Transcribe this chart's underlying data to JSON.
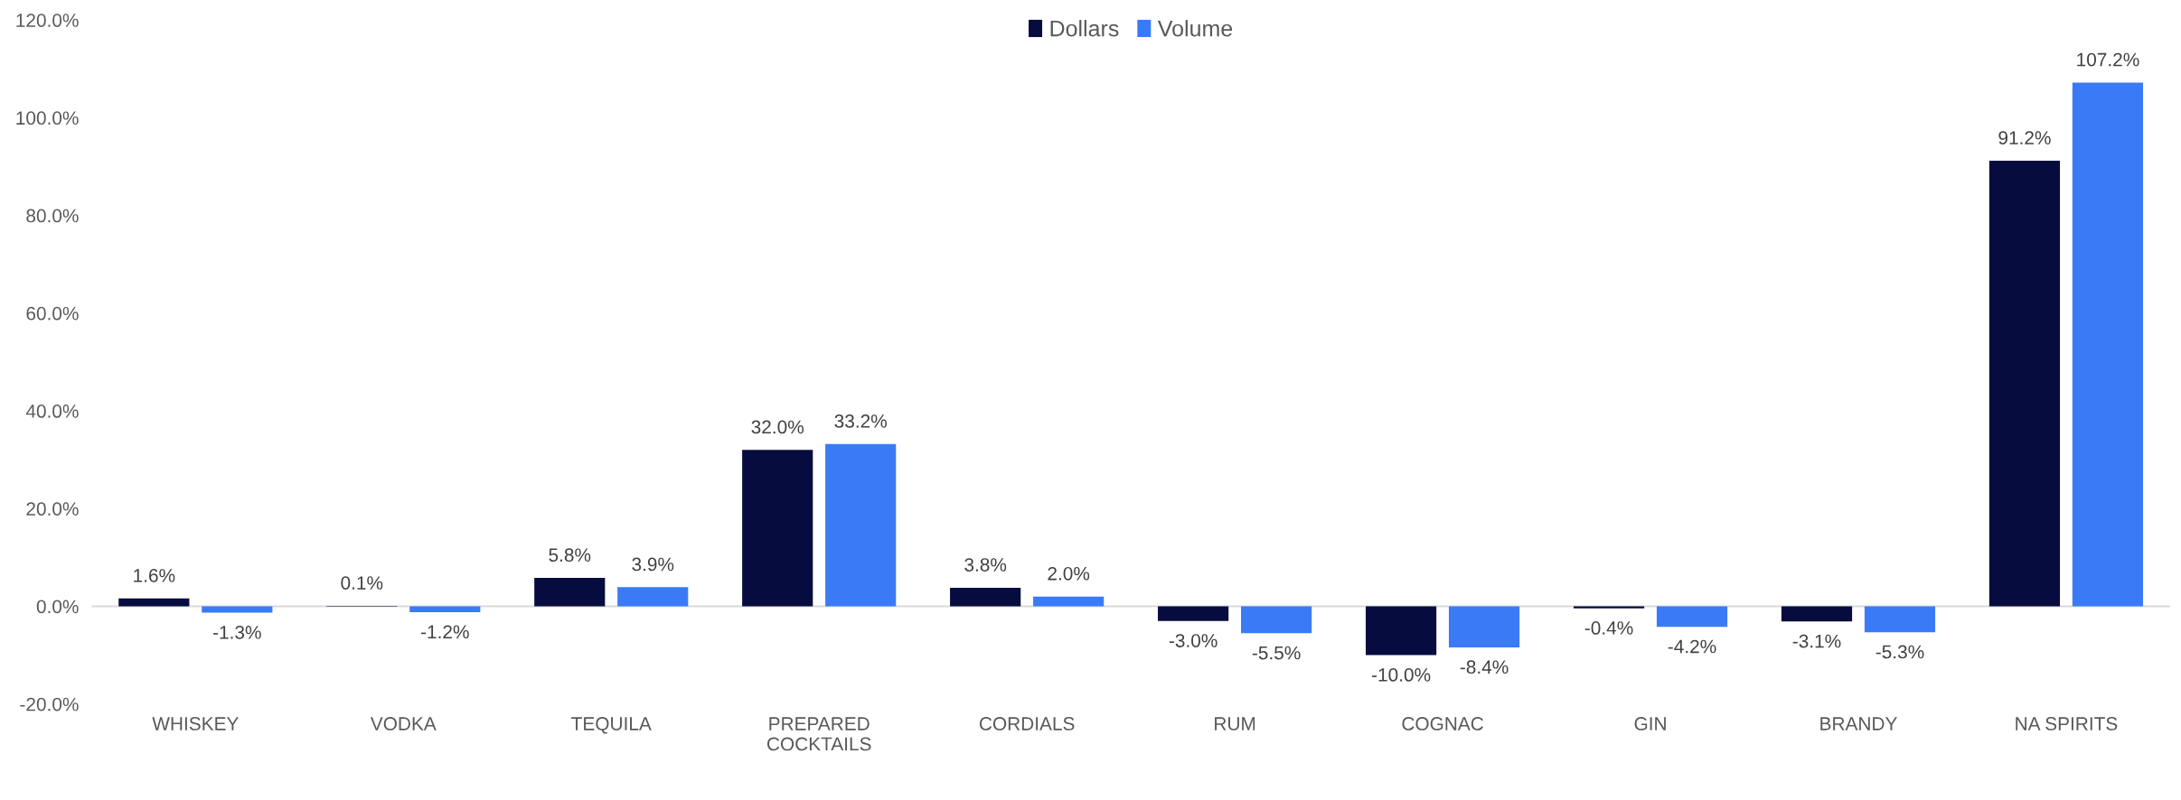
{
  "chart_data": {
    "type": "bar",
    "categories": [
      "WHISKEY",
      "VODKA",
      "TEQUILA",
      "PREPARED\nCOCKTAILS",
      "CORDIALS",
      "RUM",
      "COGNAC",
      "GIN",
      "BRANDY",
      "NA SPIRITS"
    ],
    "series": [
      {
        "name": "Dollars",
        "color": "#070c3f",
        "values": [
          1.6,
          0.1,
          5.8,
          32.0,
          3.8,
          -3.0,
          -10.0,
          -0.4,
          -3.1,
          91.2
        ],
        "value_labels": [
          "1.6%",
          "0.1%",
          "5.8%",
          "32.0%",
          "3.8%",
          "-3.0%",
          "-10.0%",
          "-0.4%",
          "-3.1%",
          "91.2%"
        ]
      },
      {
        "name": "Volume",
        "color": "#3a7bf5",
        "values": [
          -1.3,
          -1.2,
          3.9,
          33.2,
          2.0,
          -5.5,
          -8.4,
          -4.2,
          -5.3,
          107.2
        ],
        "value_labels": [
          "-1.3%",
          "-1.2%",
          "3.9%",
          "33.2%",
          "2.0%",
          "-5.5%",
          "-8.4%",
          "-4.2%",
          "-5.3%",
          "107.2%"
        ]
      }
    ],
    "ylim": [
      -20,
      120
    ],
    "yticks": [
      {
        "value": -20,
        "label": "-20.0%"
      },
      {
        "value": 0,
        "label": "0.0%"
      },
      {
        "value": 20,
        "label": "20.0%"
      },
      {
        "value": 40,
        "label": "40.0%"
      },
      {
        "value": 60,
        "label": "60.0%"
      },
      {
        "value": 80,
        "label": "80.0%"
      },
      {
        "value": 100,
        "label": "100.0%"
      },
      {
        "value": 120,
        "label": "120.0%"
      }
    ],
    "grid": false,
    "ref_lines": [
      {
        "axis": "y",
        "value": 0,
        "color": "#d9d9d9"
      }
    ],
    "legend": "top"
  }
}
